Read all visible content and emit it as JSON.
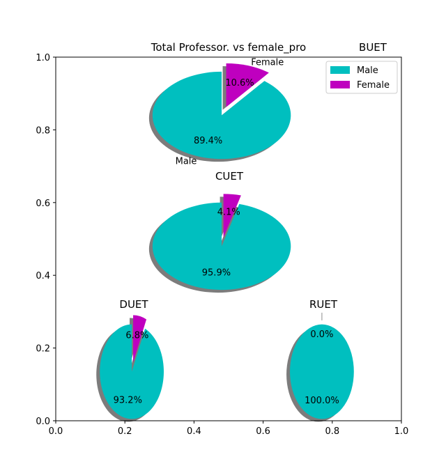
{
  "figure": {
    "title": "Total Professor. vs female_pro"
  },
  "axes": {
    "xlim": [
      0,
      1
    ],
    "ylim": [
      0,
      1
    ],
    "xticks": [
      "0.0",
      "0.2",
      "0.4",
      "0.6",
      "0.8",
      "1.0"
    ],
    "yticks": [
      "0.0",
      "0.2",
      "0.4",
      "0.6",
      "0.8",
      "1.0"
    ]
  },
  "legend": {
    "placement": "top-right",
    "entries": [
      {
        "label": "Male",
        "color": "#00bfbf"
      },
      {
        "label": "Female",
        "color": "#bf00bf"
      }
    ]
  },
  "chart_data": [
    {
      "type": "pie",
      "title": "BUET",
      "labels": [
        "Male",
        "Female"
      ],
      "values": [
        89.4,
        10.6
      ],
      "autopct": [
        "89.4%",
        "10.6%"
      ],
      "colors": [
        "#00bfbf",
        "#bf00bf"
      ],
      "explode": [
        0,
        0.2
      ],
      "shadow": true,
      "center": [
        0.48,
        0.84
      ],
      "radius": [
        0.4,
        0.12
      ]
    },
    {
      "type": "pie",
      "title": "CUET",
      "labels": [
        "",
        ""
      ],
      "values": [
        95.9,
        4.1
      ],
      "autopct": [
        "95.9%",
        "4.1%"
      ],
      "colors": [
        "#00bfbf",
        "#bf00bf"
      ],
      "explode": [
        0,
        0.2
      ],
      "shadow": true,
      "center": [
        0.48,
        0.48
      ],
      "radius": [
        0.4,
        0.12
      ]
    },
    {
      "type": "pie",
      "title": "DUET",
      "labels": [
        "",
        ""
      ],
      "values": [
        93.2,
        6.8
      ],
      "autopct": [
        "93.2%",
        "6.8%"
      ],
      "colors": [
        "#00bfbf",
        "#bf00bf"
      ],
      "explode": [
        0,
        0.2
      ],
      "shadow": true,
      "center": [
        0.22,
        0.135
      ],
      "radius": [
        0.185,
        0.13
      ]
    },
    {
      "type": "pie",
      "title": "RUET",
      "labels": [
        "",
        ""
      ],
      "values": [
        100.0,
        0.0
      ],
      "autopct": [
        "100.0%",
        "0.0%"
      ],
      "colors": [
        "#00bfbf",
        "#bf00bf"
      ],
      "explode": [
        0,
        0.2
      ],
      "shadow": true,
      "center": [
        0.77,
        0.135
      ],
      "radius": [
        0.185,
        0.13
      ]
    }
  ]
}
